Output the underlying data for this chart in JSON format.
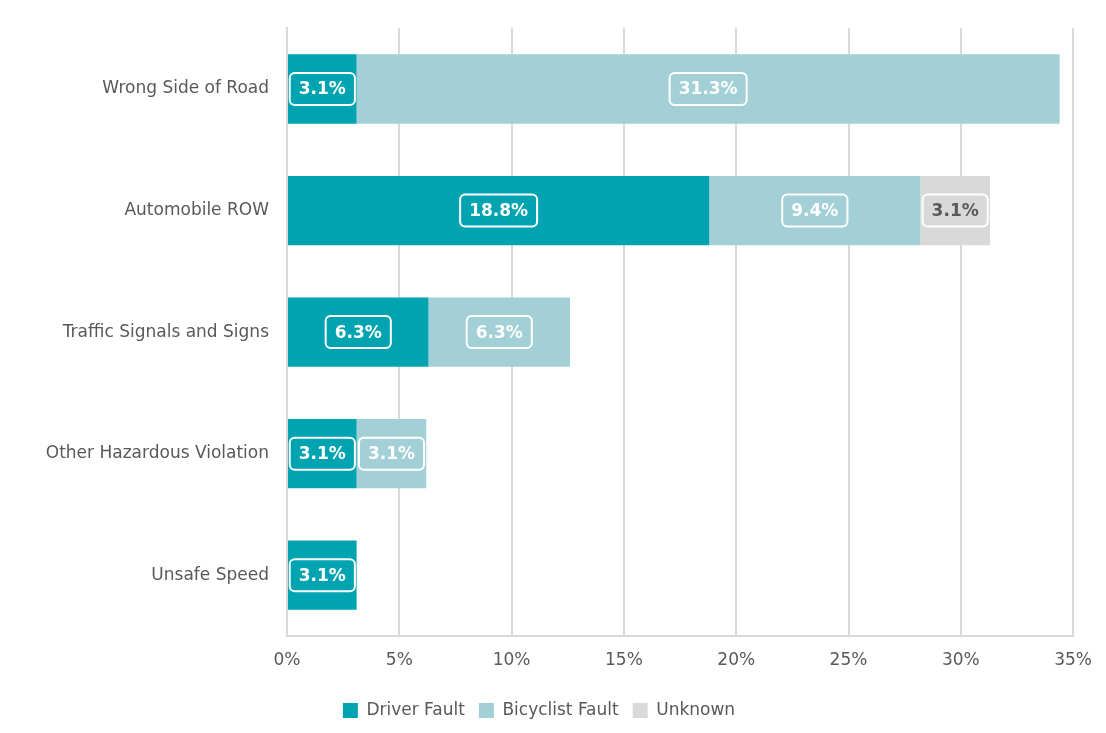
{
  "chart_data": {
    "type": "bar",
    "orientation": "horizontal",
    "stacked": true,
    "categories": [
      "Wrong Side of Road",
      "Automobile ROW",
      "Traffic Signals and Signs",
      "Other Hazardous Violation",
      "Unsafe Speed"
    ],
    "series": [
      {
        "name": "Driver Fault",
        "color": "#00a4b0",
        "values": [
          3.1,
          18.8,
          6.3,
          3.1,
          3.1
        ],
        "value_labels": [
          "3.1%",
          "18.8%",
          "6.3%",
          "3.1%",
          "3.1%"
        ]
      },
      {
        "name": "Bicyclist Fault",
        "color": "#a2d0d6",
        "values": [
          31.3,
          9.4,
          6.3,
          3.1,
          null
        ],
        "value_labels": [
          "31.3%",
          "9.4%",
          "6.3%",
          "3.1%",
          null
        ]
      },
      {
        "name": "Unknown",
        "color": "#d9d9d9",
        "values": [
          null,
          3.1,
          null,
          null,
          null
        ],
        "value_labels": [
          null,
          "3.1%",
          null,
          null,
          null
        ]
      }
    ],
    "xlim": [
      0,
      35
    ],
    "xticks": [
      {
        "value": 0,
        "label": "0%"
      },
      {
        "value": 5,
        "label": "5%"
      },
      {
        "value": 10,
        "label": "10%"
      },
      {
        "value": 15,
        "label": "15%"
      },
      {
        "value": 20,
        "label": "20%"
      },
      {
        "value": 25,
        "label": "25%"
      },
      {
        "value": 30,
        "label": "30%"
      },
      {
        "value": 35,
        "label": "35%"
      }
    ],
    "grid": "x",
    "legend": "bottom"
  }
}
